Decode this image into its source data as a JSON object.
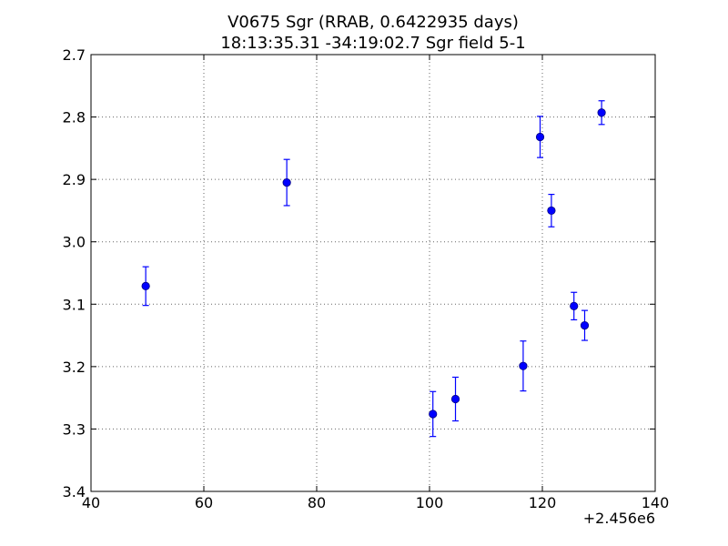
{
  "chart_data": {
    "type": "scatter",
    "title": "V0675 Sgr (RRAB, 0.6422935 days)",
    "subtitle": "18:13:35.31 -34:19:02.7 Sgr field 5-1",
    "xlabel": "",
    "ylabel": "",
    "x_offset_label": "+2.456e6",
    "xlim": [
      40,
      140
    ],
    "ylim": [
      3.4,
      2.7
    ],
    "y_inverted": true,
    "grid": true,
    "xticks": [
      "40",
      "60",
      "80",
      "100",
      "120",
      "140"
    ],
    "yticks": [
      "2.7",
      "2.8",
      "2.9",
      "3.0",
      "3.1",
      "3.2",
      "3.3",
      "3.4"
    ],
    "marker_color": "#0000ff",
    "points": [
      {
        "x": 49.7,
        "y": 3.071,
        "err": 0.031
      },
      {
        "x": 74.7,
        "y": 2.905,
        "err": 0.037
      },
      {
        "x": 100.6,
        "y": 3.276,
        "err": 0.036
      },
      {
        "x": 104.6,
        "y": 3.252,
        "err": 0.035
      },
      {
        "x": 116.6,
        "y": 3.199,
        "err": 0.04
      },
      {
        "x": 119.6,
        "y": 2.832,
        "err": 0.033
      },
      {
        "x": 121.6,
        "y": 2.95,
        "err": 0.026
      },
      {
        "x": 125.6,
        "y": 3.103,
        "err": 0.022
      },
      {
        "x": 127.5,
        "y": 3.134,
        "err": 0.024
      },
      {
        "x": 130.5,
        "y": 2.793,
        "err": 0.019
      }
    ]
  }
}
